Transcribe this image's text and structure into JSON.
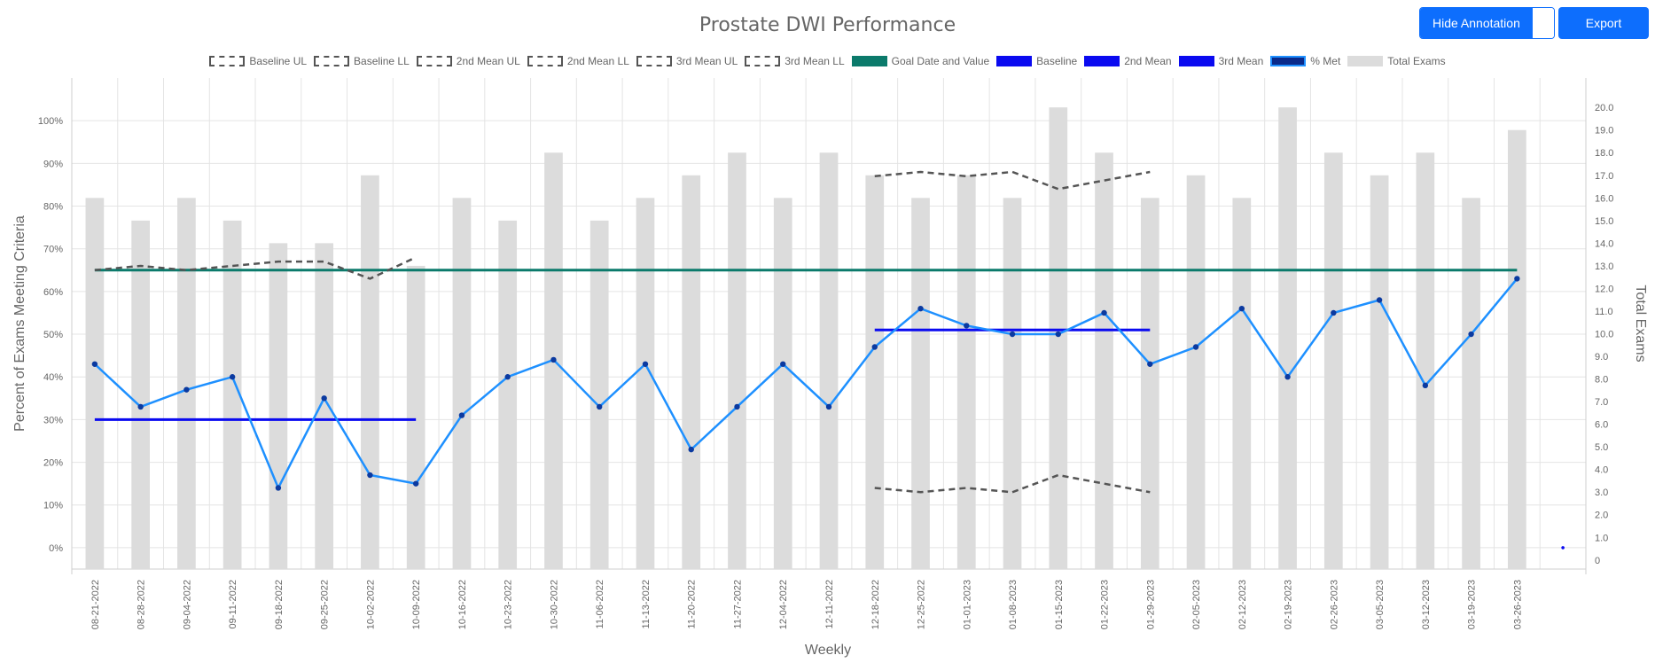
{
  "header": {
    "hide_annotation_label": "Hide Annotation",
    "export_label": "Export"
  },
  "legend": {
    "items": [
      {
        "label": "Baseline UL",
        "style": "dashed",
        "color": "#555555"
      },
      {
        "label": "Baseline LL",
        "style": "dashed",
        "color": "#555555"
      },
      {
        "label": "2nd Mean UL",
        "style": "dashed",
        "color": "#555555"
      },
      {
        "label": "2nd Mean LL",
        "style": "dashed",
        "color": "#555555"
      },
      {
        "label": "3rd Mean UL",
        "style": "dashed",
        "color": "#555555"
      },
      {
        "label": "3rd Mean LL",
        "style": "dashed",
        "color": "#555555"
      },
      {
        "label": "Goal Date and Value",
        "style": "solid",
        "color": "#0b7a6b"
      },
      {
        "label": "Baseline",
        "style": "solid",
        "color": "#0a0af0"
      },
      {
        "label": "2nd Mean",
        "style": "solid",
        "color": "#0a0af0"
      },
      {
        "label": "3rd Mean",
        "style": "solid",
        "color": "#0a0af0"
      },
      {
        "label": "% Met",
        "style": "met",
        "color": "#1e90ff"
      },
      {
        "label": "Total Exams",
        "style": "solid",
        "color": "#dcdcdc"
      }
    ]
  },
  "chart_data": {
    "type": "line",
    "title": "Prostate DWI Performance",
    "xlabel": "Weekly",
    "ylabel": "Percent of Exams Meeting Criteria",
    "y2label": "Total Exams",
    "ylim": [
      -5,
      110
    ],
    "y2lim": [
      -0.4,
      21.3
    ],
    "y_ticks": [
      0,
      10,
      20,
      30,
      40,
      50,
      60,
      70,
      80,
      90,
      100
    ],
    "y_tick_labels": [
      "0%",
      "10%",
      "20%",
      "30%",
      "40%",
      "50%",
      "60%",
      "70%",
      "80%",
      "90%",
      "100%"
    ],
    "y2_ticks": [
      0,
      1,
      2,
      3,
      4,
      5,
      6,
      7,
      8,
      9,
      10,
      11,
      12,
      13,
      14,
      15,
      16,
      17,
      18,
      19,
      20
    ],
    "y2_tick_labels": [
      "0",
      "1.0",
      "2.0",
      "3.0",
      "4.0",
      "5.0",
      "6.0",
      "7.0",
      "8.0",
      "9.0",
      "10.0",
      "11.0",
      "12.0",
      "13.0",
      "14.0",
      "15.0",
      "16.0",
      "17.0",
      "18.0",
      "19.0",
      "20.0"
    ],
    "categories": [
      "08-21-2022",
      "08-28-2022",
      "09-04-2022",
      "09-11-2022",
      "09-18-2022",
      "09-25-2022",
      "10-02-2022",
      "10-09-2022",
      "10-16-2022",
      "10-23-2022",
      "10-30-2022",
      "11-06-2022",
      "11-13-2022",
      "11-20-2022",
      "11-27-2022",
      "12-04-2022",
      "12-11-2022",
      "12-18-2022",
      "12-25-2022",
      "01-01-2023",
      "01-08-2023",
      "01-15-2023",
      "01-22-2023",
      "01-29-2023",
      "02-05-2023",
      "02-12-2023",
      "02-19-2023",
      "02-26-2023",
      "03-05-2023",
      "03-12-2023",
      "03-19-2023",
      "03-26-2023",
      ""
    ],
    "total_exams": [
      16,
      15,
      16,
      15,
      14,
      14,
      17,
      13,
      16,
      15,
      18,
      15,
      16,
      17,
      18,
      16,
      18,
      17,
      16,
      17,
      16,
      20,
      18,
      16,
      17,
      16,
      20,
      18,
      17,
      18,
      16,
      19
    ],
    "pct_met": [
      43,
      33,
      37,
      40,
      14,
      35,
      17,
      15,
      31,
      40,
      44,
      33,
      43,
      23,
      33,
      43,
      33,
      47,
      56,
      52,
      50,
      50,
      55,
      43,
      47,
      56,
      40,
      55,
      58,
      38,
      50,
      63
    ],
    "goal": {
      "value": 65,
      "from": 0,
      "to": 31
    },
    "means": [
      {
        "name": "Baseline",
        "value": 30,
        "from": 0,
        "to": 7
      },
      {
        "name": "2nd Mean",
        "value": 51,
        "from": 17,
        "to": 23
      }
    ],
    "control_limits": [
      {
        "name": "Baseline UL",
        "from": 0,
        "values": [
          65,
          66,
          65,
          66,
          67,
          67,
          63,
          68
        ]
      },
      {
        "name": "2nd Mean UL",
        "from": 17,
        "values": [
          87,
          88,
          87,
          88,
          84,
          86,
          88
        ]
      },
      {
        "name": "2nd Mean LL",
        "from": 17,
        "values": [
          14,
          13,
          14,
          13,
          17,
          15,
          13
        ]
      }
    ],
    "stray_point": {
      "index": 32,
      "value": 0
    }
  }
}
